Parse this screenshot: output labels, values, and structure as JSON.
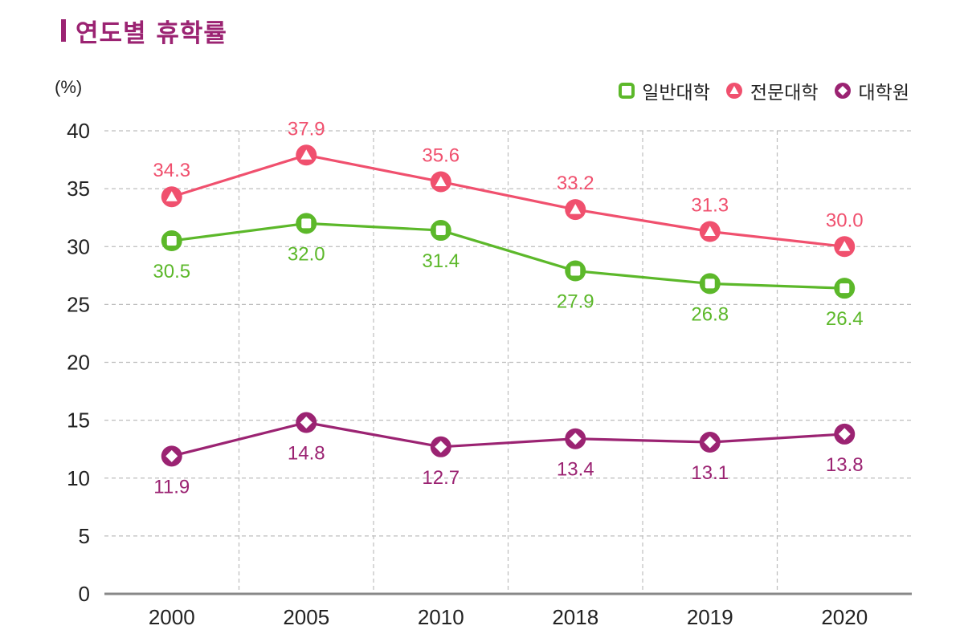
{
  "title": "연도별 휴학률",
  "colors": {
    "accent": "#9b2372",
    "series_general": "#5cb82a",
    "series_junior": "#f0506e",
    "series_grad": "#9b2372",
    "grid": "#bdbdbd",
    "axis": "#888888"
  },
  "chart_data": {
    "type": "line",
    "title": "연도별 휴학률",
    "ylabel": "(%)",
    "xlabel": "",
    "categories": [
      "2000",
      "2005",
      "2010",
      "2018",
      "2019",
      "2020"
    ],
    "ylim": [
      0,
      40
    ],
    "yticks": [
      0,
      5,
      10,
      15,
      20,
      25,
      30,
      35,
      40
    ],
    "legend_position": "top-right",
    "series": [
      {
        "name": "일반대학",
        "marker": "square",
        "color": "#5cb82a",
        "label_position": "below",
        "values": [
          30.5,
          32.0,
          31.4,
          27.9,
          26.8,
          26.4
        ],
        "labels": [
          "30.5",
          "32.0",
          "31.4",
          "27.9",
          "26.8",
          "26.4"
        ]
      },
      {
        "name": "전문대학",
        "marker": "triangle",
        "color": "#f0506e",
        "label_position": "above",
        "values": [
          34.3,
          37.9,
          35.6,
          33.2,
          31.3,
          30.0
        ],
        "labels": [
          "34.3",
          "37.9",
          "35.6",
          "33.2",
          "31.3",
          "30.0"
        ]
      },
      {
        "name": "대학원",
        "marker": "diamond",
        "color": "#9b2372",
        "label_position": "below",
        "values": [
          11.9,
          14.8,
          12.7,
          13.4,
          13.1,
          13.8
        ],
        "labels": [
          "11.9",
          "14.8",
          "12.7",
          "13.4",
          "13.1",
          "13.8"
        ]
      }
    ]
  }
}
